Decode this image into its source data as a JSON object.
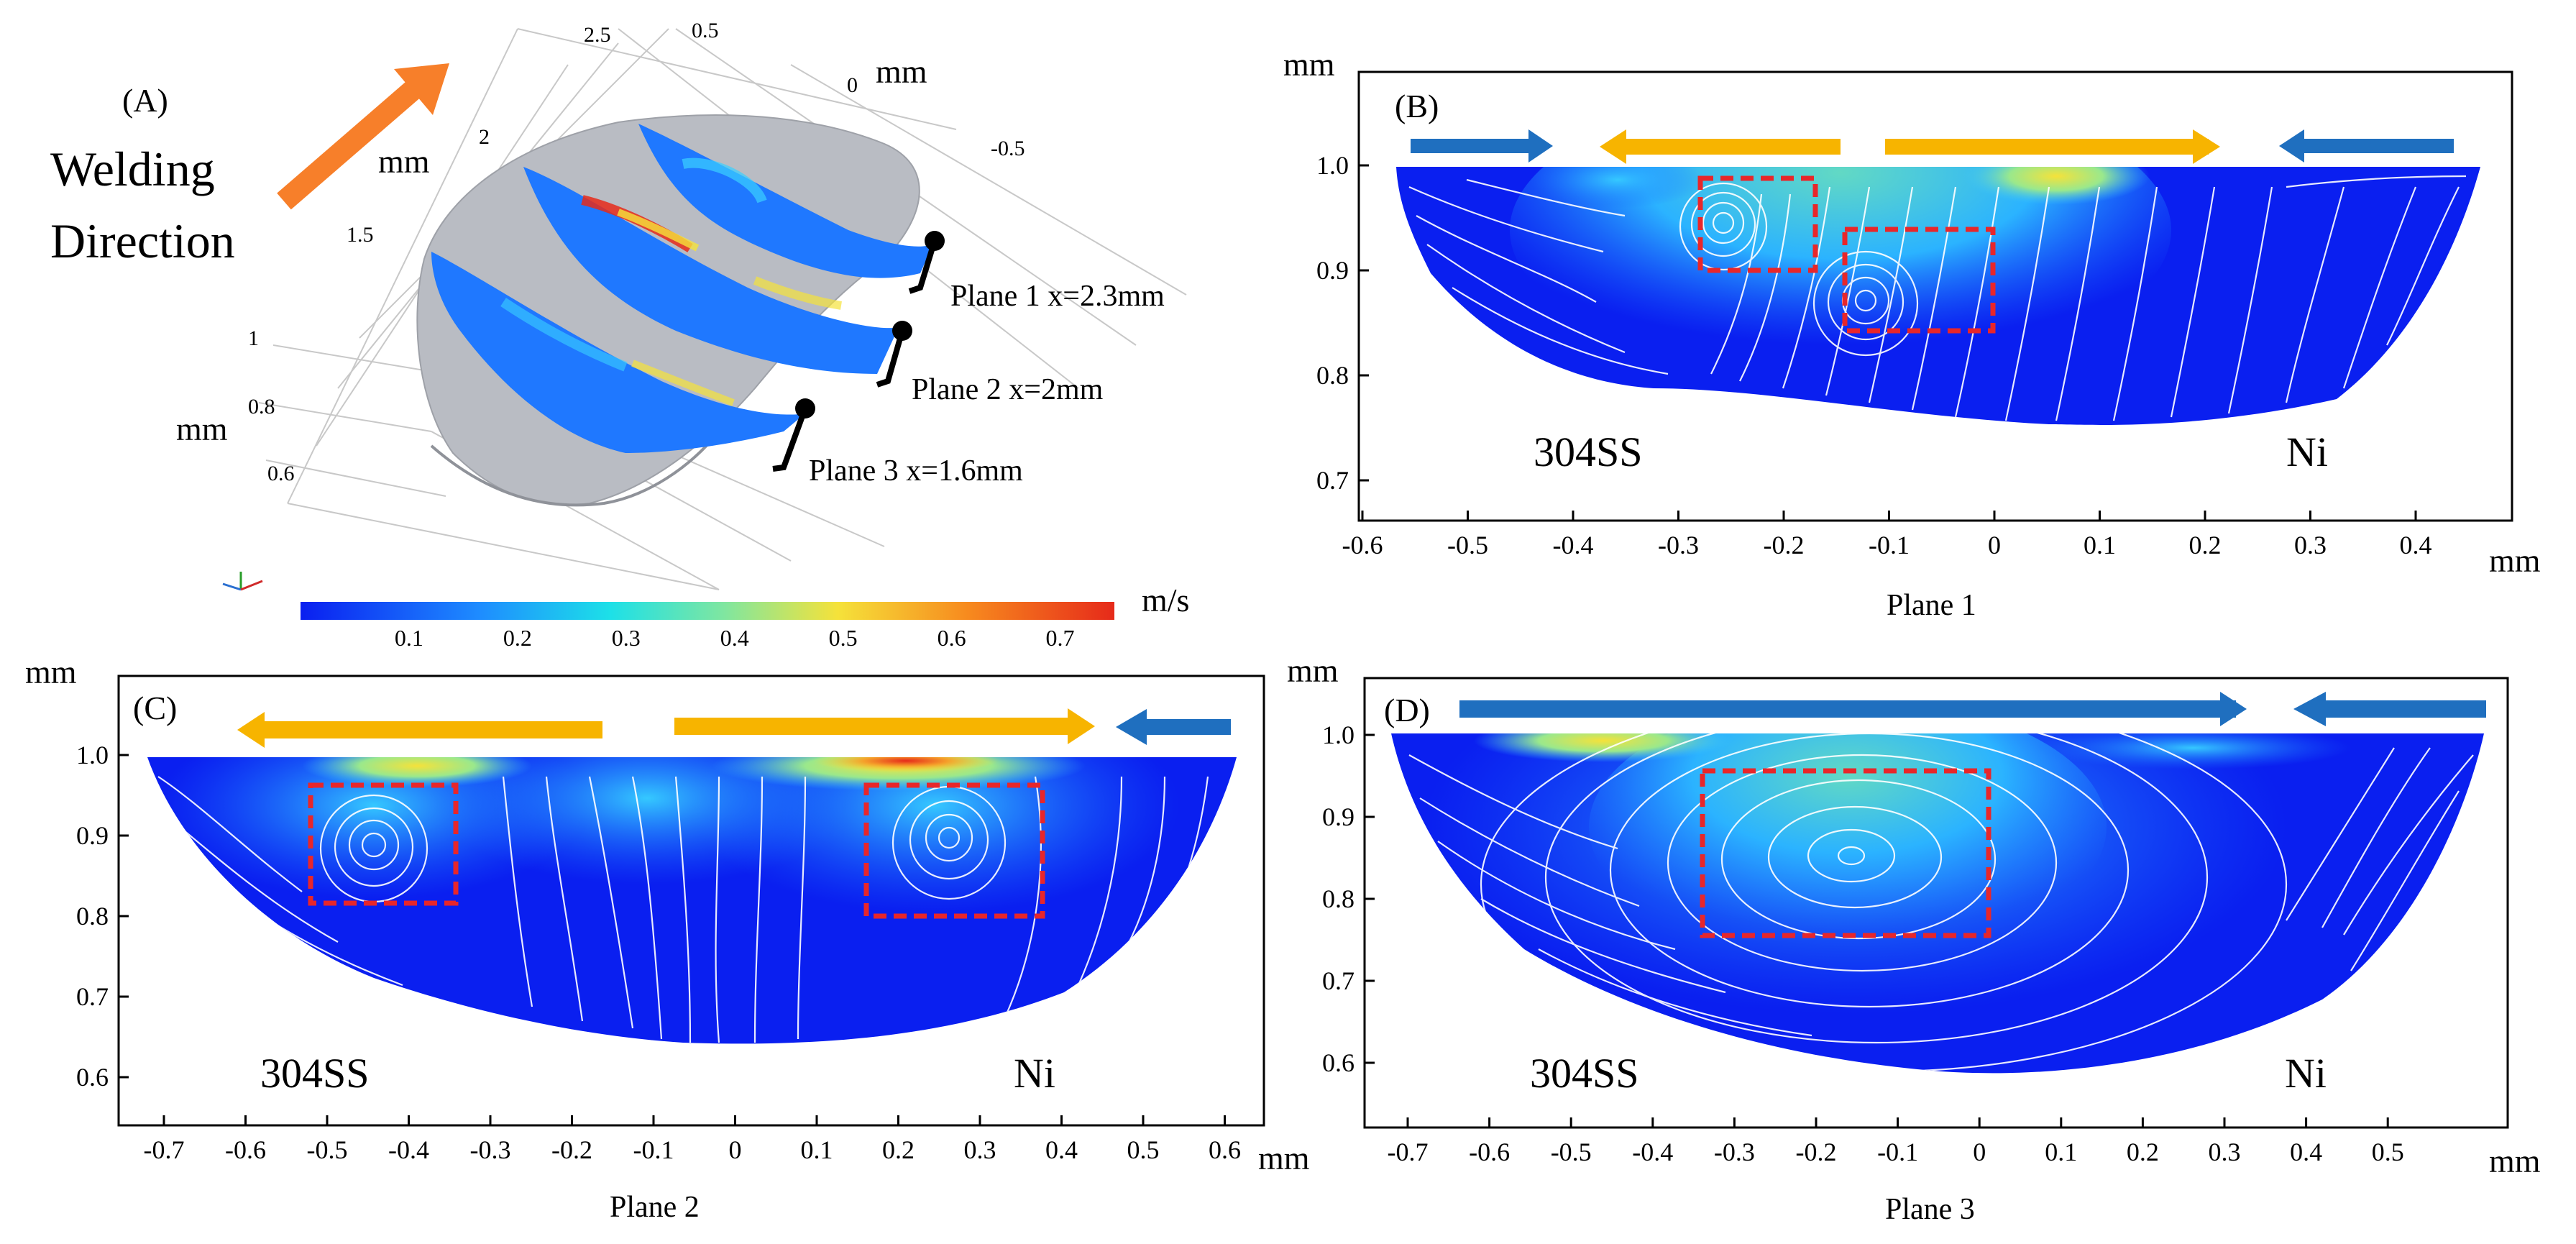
{
  "colors": {
    "melt_blue": "#0a1ff0",
    "melt_cyan": "#22aaff",
    "melt_green": "#7fe6a0",
    "melt_yellow": "#f5e23a",
    "melt_red": "#e62a1a",
    "vortex_box": "#e8262a",
    "arrow_orange": "#f7b400",
    "arrow_blue": "#1f6fbf",
    "welding_arrow": "#f77f2a",
    "solid_gray": "#b9bcc3"
  },
  "panel_a": {
    "tag": "(A)",
    "welding_line1": "Welding",
    "welding_line2": "Direction",
    "axis_y_ticks": [
      "2.5",
      "2",
      "1.5"
    ],
    "axis_z_ticks": [
      "1",
      "0.8",
      "0.6"
    ],
    "axis_x_ticks": [
      "0.5",
      "0",
      "-0.5"
    ],
    "unit_y": "mm",
    "unit_z": "mm",
    "unit_x": "mm",
    "plane_labels": [
      "Plane 1 x=2.3mm",
      "Plane 2 x=2mm",
      "Plane 3 x=1.6mm"
    ],
    "colorbar": {
      "unit": "m/s",
      "ticks": [
        "0.1",
        "0.2",
        "0.3",
        "0.4",
        "0.5",
        "0.6",
        "0.7"
      ],
      "range": [
        0,
        0.75
      ]
    }
  },
  "panel_b": {
    "tag": "(B)",
    "plane_name": "Plane 1",
    "x_unit": "mm",
    "y_unit": "mm",
    "x_ticks": [
      "-0.6",
      "-0.5",
      "-0.4",
      "-0.3",
      "-0.2",
      "-0.1",
      "0",
      "0.1",
      "0.2",
      "0.3",
      "0.4"
    ],
    "y_ticks": [
      "1.0",
      "0.9",
      "0.8",
      "0.7"
    ],
    "left_material": "304SS",
    "right_material": "Ni"
  },
  "panel_c": {
    "tag": "(C)",
    "plane_name": "Plane 2",
    "x_unit": "mm",
    "y_unit": "mm",
    "x_ticks": [
      "-0.7",
      "-0.6",
      "-0.5",
      "-0.4",
      "-0.3",
      "-0.2",
      "-0.1",
      "0",
      "0.1",
      "0.2",
      "0.3",
      "0.4",
      "0.5",
      "0.6"
    ],
    "y_ticks": [
      "1.0",
      "0.9",
      "0.8",
      "0.7",
      "0.6"
    ],
    "left_material": "304SS",
    "right_material": "Ni"
  },
  "panel_d": {
    "tag": "(D)",
    "plane_name": "Plane 3",
    "x_unit": "mm",
    "y_unit": "mm",
    "x_ticks": [
      "-0.7",
      "-0.6",
      "-0.5",
      "-0.4",
      "-0.3",
      "-0.2",
      "-0.1",
      "0",
      "0.1",
      "0.2",
      "0.3",
      "0.4",
      "0.5"
    ],
    "y_ticks": [
      "1.0",
      "0.9",
      "0.8",
      "0.7",
      "0.6"
    ],
    "left_material": "304SS",
    "right_material": "Ni"
  }
}
